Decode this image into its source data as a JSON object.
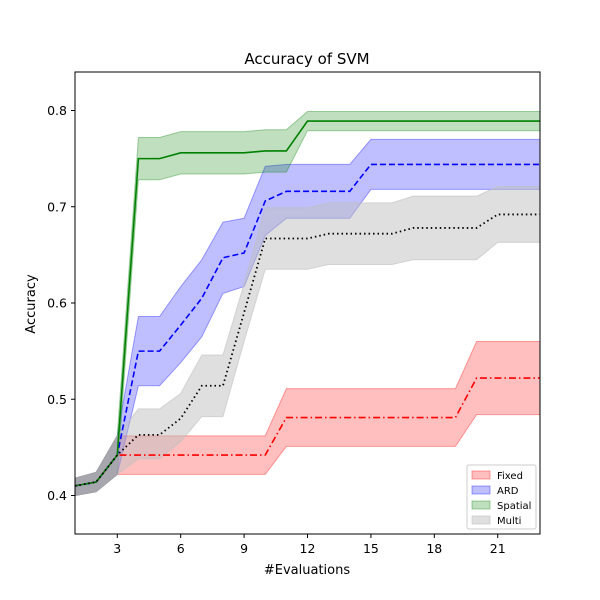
{
  "chart_data": {
    "type": "line",
    "title": "Accuracy of SVM",
    "xlabel": "#Evaluations",
    "ylabel": "Accuracy",
    "xlim": [
      1,
      23
    ],
    "ylim": [
      0.36,
      0.84
    ],
    "xticks": [
      3,
      6,
      9,
      12,
      15,
      18,
      21
    ],
    "yticks": [
      0.4,
      0.5,
      0.6,
      0.7,
      0.8
    ],
    "grid": false,
    "legend_position": "lower-right",
    "series": [
      {
        "name": "Fixed",
        "color": "#ff0000",
        "line_style": "dash-dot",
        "x": [
          1,
          2,
          3,
          4,
          5,
          6,
          7,
          8,
          9,
          10,
          11,
          12,
          13,
          14,
          15,
          16,
          17,
          18,
          19,
          20,
          21,
          22,
          23
        ],
        "mean": [
          0.41,
          0.414,
          0.442,
          0.442,
          0.442,
          0.442,
          0.442,
          0.442,
          0.442,
          0.442,
          0.481,
          0.481,
          0.481,
          0.481,
          0.481,
          0.481,
          0.481,
          0.481,
          0.481,
          0.522,
          0.522,
          0.522,
          0.522
        ],
        "lower": [
          0.4,
          0.404,
          0.422,
          0.422,
          0.422,
          0.422,
          0.422,
          0.422,
          0.422,
          0.422,
          0.451,
          0.451,
          0.451,
          0.451,
          0.451,
          0.451,
          0.451,
          0.451,
          0.451,
          0.484,
          0.484,
          0.484,
          0.484
        ],
        "upper": [
          0.418,
          0.424,
          0.462,
          0.462,
          0.462,
          0.462,
          0.462,
          0.462,
          0.462,
          0.462,
          0.511,
          0.511,
          0.511,
          0.511,
          0.511,
          0.511,
          0.511,
          0.511,
          0.511,
          0.56,
          0.56,
          0.56,
          0.56
        ]
      },
      {
        "name": "ARD",
        "color": "#0000ff",
        "line_style": "dashed",
        "x": [
          1,
          2,
          3,
          4,
          5,
          6,
          7,
          8,
          9,
          10,
          11,
          12,
          13,
          14,
          15,
          16,
          17,
          18,
          19,
          20,
          21,
          22,
          23
        ],
        "mean": [
          0.41,
          0.414,
          0.442,
          0.55,
          0.55,
          0.577,
          0.605,
          0.647,
          0.652,
          0.706,
          0.716,
          0.716,
          0.716,
          0.716,
          0.744,
          0.744,
          0.744,
          0.744,
          0.744,
          0.744,
          0.744,
          0.744,
          0.744
        ],
        "lower": [
          0.4,
          0.404,
          0.422,
          0.514,
          0.514,
          0.538,
          0.565,
          0.61,
          0.617,
          0.67,
          0.688,
          0.688,
          0.688,
          0.688,
          0.718,
          0.718,
          0.718,
          0.718,
          0.718,
          0.718,
          0.718,
          0.718,
          0.718
        ],
        "upper": [
          0.418,
          0.424,
          0.462,
          0.586,
          0.586,
          0.617,
          0.645,
          0.684,
          0.688,
          0.742,
          0.744,
          0.744,
          0.744,
          0.744,
          0.77,
          0.77,
          0.77,
          0.77,
          0.77,
          0.77,
          0.77,
          0.77,
          0.77
        ]
      },
      {
        "name": "Spatial",
        "color": "#008000",
        "line_style": "solid",
        "x": [
          1,
          2,
          3,
          4,
          5,
          6,
          7,
          8,
          9,
          10,
          11,
          12,
          13,
          14,
          15,
          16,
          17,
          18,
          19,
          20,
          21,
          22,
          23
        ],
        "mean": [
          0.41,
          0.414,
          0.442,
          0.75,
          0.75,
          0.756,
          0.756,
          0.756,
          0.756,
          0.758,
          0.758,
          0.789,
          0.789,
          0.789,
          0.789,
          0.789,
          0.789,
          0.789,
          0.789,
          0.789,
          0.789,
          0.789,
          0.789
        ],
        "lower": [
          0.4,
          0.404,
          0.422,
          0.728,
          0.728,
          0.734,
          0.734,
          0.734,
          0.734,
          0.736,
          0.736,
          0.779,
          0.779,
          0.779,
          0.779,
          0.779,
          0.779,
          0.779,
          0.779,
          0.779,
          0.779,
          0.779,
          0.779
        ],
        "upper": [
          0.418,
          0.424,
          0.462,
          0.772,
          0.772,
          0.778,
          0.778,
          0.778,
          0.778,
          0.78,
          0.78,
          0.799,
          0.799,
          0.799,
          0.799,
          0.799,
          0.799,
          0.799,
          0.799,
          0.799,
          0.799,
          0.799,
          0.799
        ]
      },
      {
        "name": "Multi",
        "color": "#000000",
        "band_color": "#bfbfbf",
        "line_style": "dotted",
        "x": [
          1,
          2,
          3,
          4,
          5,
          6,
          7,
          8,
          9,
          10,
          11,
          12,
          13,
          14,
          15,
          16,
          17,
          18,
          19,
          20,
          21,
          22,
          23
        ],
        "mean": [
          0.41,
          0.414,
          0.442,
          0.463,
          0.463,
          0.48,
          0.514,
          0.514,
          0.59,
          0.667,
          0.667,
          0.667,
          0.672,
          0.672,
          0.672,
          0.672,
          0.678,
          0.678,
          0.678,
          0.678,
          0.692,
          0.692,
          0.692
        ],
        "lower": [
          0.4,
          0.404,
          0.422,
          0.438,
          0.438,
          0.456,
          0.482,
          0.482,
          0.56,
          0.635,
          0.635,
          0.635,
          0.64,
          0.64,
          0.64,
          0.64,
          0.645,
          0.645,
          0.645,
          0.645,
          0.663,
          0.663,
          0.663
        ],
        "upper": [
          0.418,
          0.424,
          0.462,
          0.49,
          0.49,
          0.506,
          0.546,
          0.546,
          0.62,
          0.699,
          0.699,
          0.699,
          0.704,
          0.704,
          0.704,
          0.704,
          0.711,
          0.711,
          0.711,
          0.711,
          0.721,
          0.721,
          0.721
        ]
      }
    ]
  }
}
